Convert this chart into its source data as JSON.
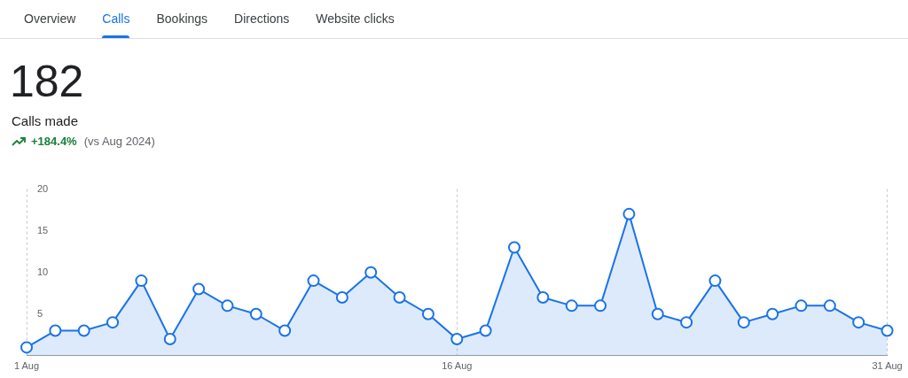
{
  "chart_data": {
    "type": "area",
    "title": "182",
    "subtitle": "Calls made",
    "annotations": [
      "Overview",
      "Calls",
      "Bookings",
      "Directions",
      "Website clicks",
      "+184.4%",
      "(vs Aug 2024)"
    ],
    "categories": [
      "1 Aug",
      null,
      null,
      null,
      null,
      null,
      null,
      null,
      null,
      null,
      null,
      null,
      null,
      null,
      null,
      "16 Aug",
      null,
      null,
      null,
      null,
      null,
      null,
      null,
      null,
      null,
      null,
      null,
      null,
      null,
      null,
      "31 Aug"
    ],
    "series": [
      {
        "color": "#1a73e8",
        "values": [
          1,
          3,
          3,
          4,
          9,
          2,
          8,
          6,
          5,
          3,
          9,
          7,
          10,
          7,
          5,
          2,
          3,
          13,
          7,
          6,
          6,
          17,
          5,
          4,
          9,
          4,
          5,
          6,
          6,
          4,
          3
        ]
      }
    ],
    "ylim": [
      0,
      20
    ],
    "yticks": [
      5,
      10,
      15,
      20
    ],
    "grid": "x",
    "legend": false,
    "marker": "circle"
  }
}
